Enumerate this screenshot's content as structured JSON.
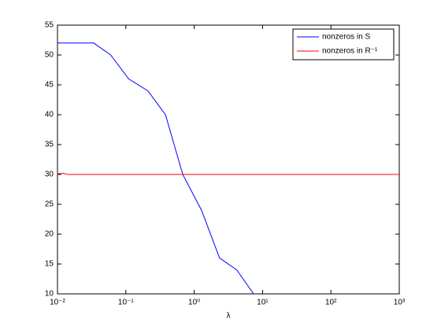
{
  "chart_data": {
    "type": "line",
    "xlabel": "λ",
    "xscale": "log",
    "xlim": [
      0.01,
      1000
    ],
    "xticks": [
      {
        "value": 0.01,
        "label": "10⁻²"
      },
      {
        "value": 0.1,
        "label": "10⁻¹"
      },
      {
        "value": 1,
        "label": "10⁰"
      },
      {
        "value": 10,
        "label": "10¹"
      },
      {
        "value": 100,
        "label": "10²"
      },
      {
        "value": 1000,
        "label": "10³"
      }
    ],
    "ylim": [
      10,
      55
    ],
    "yticks": [
      10,
      15,
      20,
      25,
      30,
      35,
      40,
      45,
      50,
      55
    ],
    "grid": false,
    "legend": "upper-right",
    "series": [
      {
        "name": "nonzeros in S",
        "color": "#0000ff",
        "x": [
          0.01,
          0.034,
          0.06,
          0.11,
          0.21,
          0.38,
          0.68,
          1.28,
          2.35,
          4.2,
          7.4
        ],
        "values": [
          52,
          52,
          50,
          46,
          44,
          40,
          30,
          24,
          16,
          14,
          10
        ]
      },
      {
        "name": "nonzeros in R⁻¹",
        "color": "#ff0000",
        "x": [
          0.01,
          0.012,
          0.014,
          1000
        ],
        "values": [
          30.1,
          30.2,
          30,
          30
        ]
      }
    ]
  }
}
